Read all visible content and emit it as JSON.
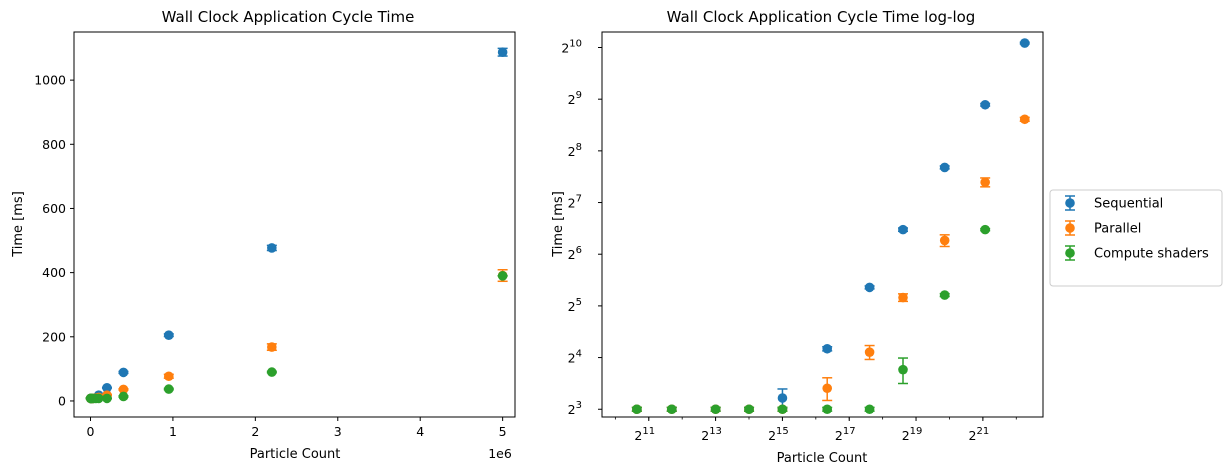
{
  "colors": {
    "sequential": "#1f77b4",
    "parallel": "#ff7f0e",
    "compute": "#2ca02c"
  },
  "chart_data": [
    {
      "type": "scatter",
      "title": "Wall Clock Application Cycle Time",
      "xlabel": "Particle Count",
      "ylabel": "Time [ms]",
      "x_offset_label": "1e6",
      "xlim": [
        -0.2,
        5.15
      ],
      "ylim": [
        -50,
        1150
      ],
      "x_ticks": [
        {
          "value": 0,
          "label": "0"
        },
        {
          "value": 1,
          "label": "1"
        },
        {
          "value": 2,
          "label": "2"
        },
        {
          "value": 3,
          "label": "3"
        },
        {
          "value": 4,
          "label": "4"
        },
        {
          "value": 5,
          "label": "5"
        }
      ],
      "y_ticks": [
        {
          "value": 0,
          "label": "0"
        },
        {
          "value": 200,
          "label": "200"
        },
        {
          "value": 400,
          "label": "400"
        },
        {
          "value": 600,
          "label": "600"
        },
        {
          "value": 800,
          "label": "800"
        },
        {
          "value": 1000,
          "label": "1000"
        }
      ],
      "series": [
        {
          "name": "Sequential",
          "color": "#1f77b4",
          "points": [
            {
              "x": 0.0016,
              "y": 8,
              "err": 1
            },
            {
              "x": 0.0033,
              "y": 8,
              "err": 1
            },
            {
              "x": 0.0082,
              "y": 8,
              "err": 1
            },
            {
              "x": 0.0164,
              "y": 8,
              "err": 1
            },
            {
              "x": 0.0328,
              "y": 8,
              "err": 1
            },
            {
              "x": 0.0655,
              "y": 9,
              "err": 1
            },
            {
              "x": 0.1,
              "y": 18,
              "err": 1
            },
            {
              "x": 0.2,
              "y": 41,
              "err": 1
            },
            {
              "x": 0.4,
              "y": 89,
              "err": 3
            },
            {
              "x": 0.95,
              "y": 205,
              "err": 4
            },
            {
              "x": 2.2,
              "y": 477,
              "err": 8
            },
            {
              "x": 5.0,
              "y": 1087,
              "err": 12
            }
          ]
        },
        {
          "name": "Parallel",
          "color": "#ff7f0e",
          "points": [
            {
              "x": 0.0016,
              "y": 8,
              "err": 1
            },
            {
              "x": 0.0033,
              "y": 8,
              "err": 1
            },
            {
              "x": 0.0082,
              "y": 8,
              "err": 1
            },
            {
              "x": 0.0164,
              "y": 8,
              "err": 1
            },
            {
              "x": 0.0328,
              "y": 8,
              "err": 1
            },
            {
              "x": 0.0655,
              "y": 9,
              "err": 2
            },
            {
              "x": 0.1,
              "y": 11,
              "err": 2
            },
            {
              "x": 0.2,
              "y": 18,
              "err": 2
            },
            {
              "x": 0.4,
              "y": 36,
              "err": 2
            },
            {
              "x": 0.95,
              "y": 77,
              "err": 6
            },
            {
              "x": 2.2,
              "y": 168,
              "err": 10
            },
            {
              "x": 5.0,
              "y": 391,
              "err": 18
            }
          ]
        },
        {
          "name": "Compute shaders",
          "color": "#2ca02c",
          "points": [
            {
              "x": 0.0016,
              "y": 8,
              "err": 1
            },
            {
              "x": 0.0033,
              "y": 8,
              "err": 1
            },
            {
              "x": 0.0082,
              "y": 8,
              "err": 1
            },
            {
              "x": 0.0164,
              "y": 8,
              "err": 1
            },
            {
              "x": 0.0328,
              "y": 8,
              "err": 1
            },
            {
              "x": 0.0655,
              "y": 8,
              "err": 1
            },
            {
              "x": 0.1,
              "y": 8,
              "err": 1
            },
            {
              "x": 0.2,
              "y": 8,
              "err": 1
            },
            {
              "x": 0.4,
              "y": 14,
              "err": 2
            },
            {
              "x": 0.95,
              "y": 37,
              "err": 2
            },
            {
              "x": 2.2,
              "y": 90,
              "err": 2
            },
            {
              "x": 5.0,
              "y": 390,
              "err": 0
            }
          ]
        }
      ],
      "legend": "none",
      "grid": false
    },
    {
      "type": "scatter",
      "title": "Wall Clock Application Cycle Time log-log",
      "xlabel": "Particle Count",
      "ylabel": "Time [ms]",
      "xscale": "log2",
      "yscale": "log2",
      "xlim_log2": [
        9.6,
        22.8
      ],
      "ylim_log2": [
        2.85,
        10.3
      ],
      "x_ticks": [
        {
          "base": "2",
          "exp": "11",
          "log2": 11
        },
        {
          "base": "2",
          "exp": "13",
          "log2": 13
        },
        {
          "base": "2",
          "exp": "15",
          "log2": 15
        },
        {
          "base": "2",
          "exp": "17",
          "log2": 17
        },
        {
          "base": "2",
          "exp": "19",
          "log2": 19
        },
        {
          "base": "2",
          "exp": "21",
          "log2": 21
        }
      ],
      "y_ticks": [
        {
          "base": "2",
          "exp": "3",
          "log2": 3
        },
        {
          "base": "2",
          "exp": "4",
          "log2": 4
        },
        {
          "base": "2",
          "exp": "5",
          "log2": 5
        },
        {
          "base": "2",
          "exp": "6",
          "log2": 6
        },
        {
          "base": "2",
          "exp": "7",
          "log2": 7
        },
        {
          "base": "2",
          "exp": "8",
          "log2": 8
        },
        {
          "base": "2",
          "exp": "9",
          "log2": 9
        },
        {
          "base": "2",
          "exp": "10",
          "log2": 10
        }
      ],
      "series": [
        {
          "name": "Sequential",
          "color": "#1f77b4",
          "points": [
            {
              "x": 1600,
              "y": 8,
              "err": 0.2
            },
            {
              "x": 3300,
              "y": 8,
              "err": 0.2
            },
            {
              "x": 8200,
              "y": 8,
              "err": 0.2
            },
            {
              "x": 16400,
              "y": 8,
              "err": 0.2
            },
            {
              "x": 32800,
              "y": 9.3,
              "err": 1.2
            },
            {
              "x": 83000,
              "y": 18,
              "err": 0.5
            },
            {
              "x": 200000,
              "y": 41,
              "err": 0.8
            },
            {
              "x": 400000,
              "y": 89,
              "err": 2
            },
            {
              "x": 950000,
              "y": 205,
              "err": 4
            },
            {
              "x": 2200000,
              "y": 475,
              "err": 8
            },
            {
              "x": 5000000,
              "y": 1087,
              "err": 12
            }
          ]
        },
        {
          "name": "Parallel",
          "color": "#ff7f0e",
          "points": [
            {
              "x": 1600,
              "y": 8,
              "err": 0.2
            },
            {
              "x": 3300,
              "y": 8,
              "err": 0.2
            },
            {
              "x": 8200,
              "y": 8,
              "err": 0.2
            },
            {
              "x": 16400,
              "y": 8,
              "err": 0.2
            },
            {
              "x": 32800,
              "y": 8,
              "err": 0.2
            },
            {
              "x": 83000,
              "y": 10.6,
              "err": 1.6
            },
            {
              "x": 200000,
              "y": 17.2,
              "err": 1.6
            },
            {
              "x": 400000,
              "y": 35.8,
              "err": 1.8
            },
            {
              "x": 950000,
              "y": 77,
              "err": 6
            },
            {
              "x": 2200000,
              "y": 168,
              "err": 10
            },
            {
              "x": 5000000,
              "y": 391,
              "err": 10
            }
          ]
        },
        {
          "name": "Compute shaders",
          "color": "#2ca02c",
          "points": [
            {
              "x": 1600,
              "y": 8,
              "err": 0.2
            },
            {
              "x": 3300,
              "y": 8,
              "err": 0.2
            },
            {
              "x": 8200,
              "y": 8,
              "err": 0.2
            },
            {
              "x": 16400,
              "y": 8,
              "err": 0.2
            },
            {
              "x": 32800,
              "y": 8,
              "err": 0.2
            },
            {
              "x": 83000,
              "y": 8,
              "err": 0.2
            },
            {
              "x": 200000,
              "y": 8,
              "err": 0.2
            },
            {
              "x": 400000,
              "y": 13.6,
              "err": 2.3
            },
            {
              "x": 950000,
              "y": 37,
              "err": 0.7
            },
            {
              "x": 2200000,
              "y": 89,
              "err": 1.2
            }
          ]
        }
      ],
      "legend": "outside-right",
      "grid": false
    }
  ],
  "legend": {
    "items": [
      {
        "label": "Sequential",
        "color": "#1f77b4"
      },
      {
        "label": "Parallel",
        "color": "#ff7f0e"
      },
      {
        "label": "Compute shaders",
        "color": "#2ca02c"
      }
    ]
  }
}
